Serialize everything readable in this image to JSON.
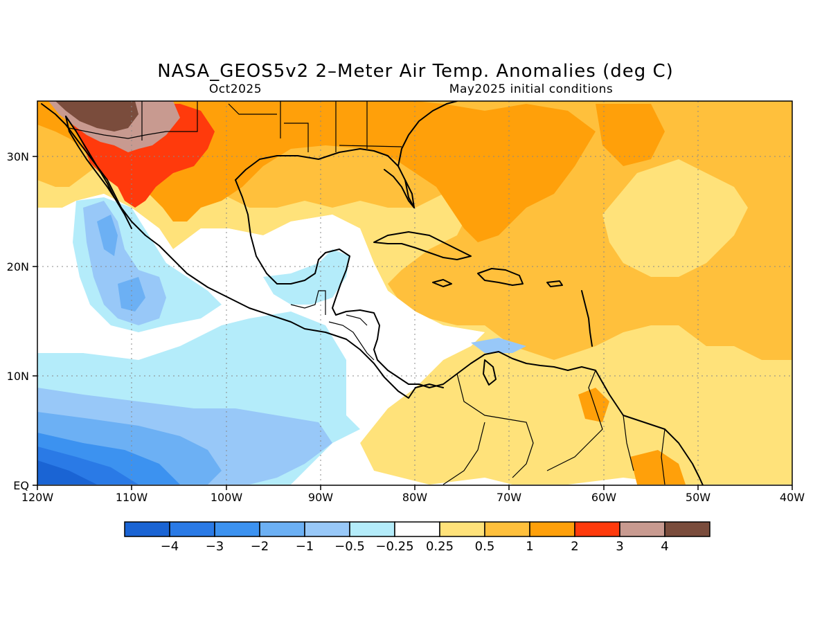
{
  "title": "NASA_GEOS5v2 2–Meter Air Temp. Anomalies (deg C)",
  "subtitle_left": "Oct2025",
  "subtitle_right": "May2025 initial conditions",
  "lon_labels": [
    "120W",
    "110W",
    "100W",
    "90W",
    "80W",
    "70W",
    "60W",
    "50W",
    "40W"
  ],
  "lat_labels": [
    "30N",
    "20N",
    "10N",
    "EQ"
  ],
  "colorbar": {
    "colors": [
      "#1a64d4",
      "#2a7ae6",
      "#3c92f0",
      "#6cb0f4",
      "#98c8f8",
      "#b4ecfa",
      "#ffffff",
      "#ffe27a",
      "#ffc03c",
      "#ffa00a",
      "#ff3a0c",
      "#c89a90",
      "#7a4c3c"
    ],
    "tick_labels": [
      "−4",
      "−3",
      "−2",
      "−1",
      "−0.5",
      "−0.25",
      "0.25",
      "0.5",
      "1",
      "2",
      "3",
      "4"
    ]
  },
  "colors": {
    "neg_strong": "#1a64d4",
    "neg_mid": "#6cb0f4",
    "neg_weak": "#b4ecfa",
    "neutral": "#ffffff",
    "pos_weak": "#ffe27a",
    "pos_mid": "#ffc03c",
    "pos_strong": "#ffa00a",
    "pos_hot": "#ff3a0c",
    "pos_very_hot": "#c89a90",
    "pos_extreme": "#7a4c3c"
  }
}
